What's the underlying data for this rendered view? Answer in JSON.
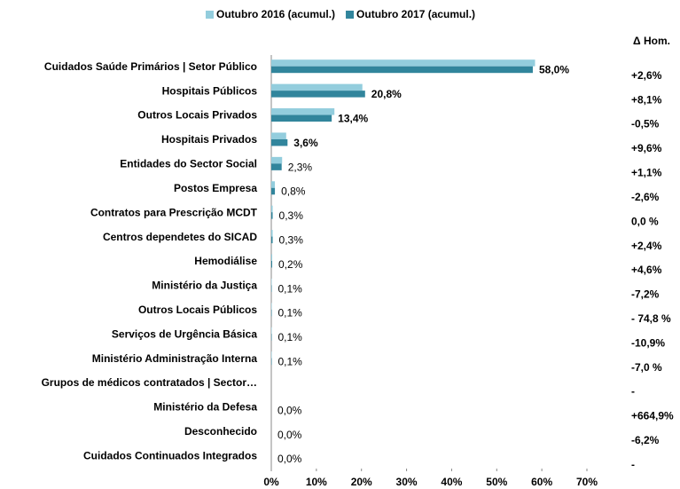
{
  "chart_data": {
    "type": "bar",
    "orientation": "horizontal",
    "categories": [
      "Cuidados Saúde Primários | Setor Público",
      "Hospitais Públicos",
      "Outros Locais Privados",
      "Hospitais Privados",
      "Entidades do Sector Social",
      "Postos Empresa",
      "Contratos para Prescrição MCDT",
      "Centros dependetes do SICAD",
      "Hemodiálise",
      "Ministério da Justiça",
      "Outros Locais Públicos",
      "Serviços de Urgência Básica",
      "Ministério Administração Interna",
      "Grupos de médicos contratados | Sector…",
      "Ministério da Defesa",
      "Desconhecido",
      "Cuidados Continuados Integrados"
    ],
    "series": [
      {
        "name": "Outubro 2016 (acumul.)",
        "color": "#93cddd",
        "values": [
          58.5,
          20.2,
          14.0,
          3.3,
          2.4,
          0.8,
          0.3,
          0.3,
          0.2,
          0.1,
          0.1,
          0.1,
          0.1,
          null,
          0.0,
          0.0,
          0.0
        ]
      },
      {
        "name": "Outubro 2017 (acumul.)",
        "color": "#31859c",
        "values": [
          58.0,
          20.8,
          13.4,
          3.6,
          2.3,
          0.8,
          0.3,
          0.3,
          0.2,
          0.1,
          0.1,
          0.1,
          0.1,
          null,
          0.0,
          0.0,
          0.0
        ],
        "value_labels": [
          "58,0%",
          "20,8%",
          "13,4%",
          "3,6%",
          "2,3%",
          "0,8%",
          "0,3%",
          "0,3%",
          "0,2%",
          "0,1%",
          "0,1%",
          "0,1%",
          "0,1%",
          null,
          "0,0%",
          "0,0%",
          "0,0%"
        ]
      }
    ],
    "xlim": [
      0,
      70
    ],
    "xticks": [
      {
        "value": 0,
        "label": "0%"
      },
      {
        "value": 10,
        "label": "10%"
      },
      {
        "value": 20,
        "label": "20%"
      },
      {
        "value": 30,
        "label": "30%"
      },
      {
        "value": 40,
        "label": "40%"
      },
      {
        "value": 50,
        "label": "50%"
      },
      {
        "value": 60,
        "label": "60%"
      },
      {
        "value": 70,
        "label": "70%"
      }
    ],
    "legend": "top",
    "delta_header": "Δ Hom.",
    "deltas": [
      "+2,6%",
      "+8,1%",
      "-0,5%",
      "+9,6%",
      "+1,1%",
      "-2,6%",
      "0,0 %",
      "+2,4%",
      "+4,6%",
      "-7,2%",
      "- 74,8 %",
      "-10,9%",
      "-7,0 %",
      "-",
      "+664,9%",
      "-6,2%",
      "-"
    ]
  }
}
